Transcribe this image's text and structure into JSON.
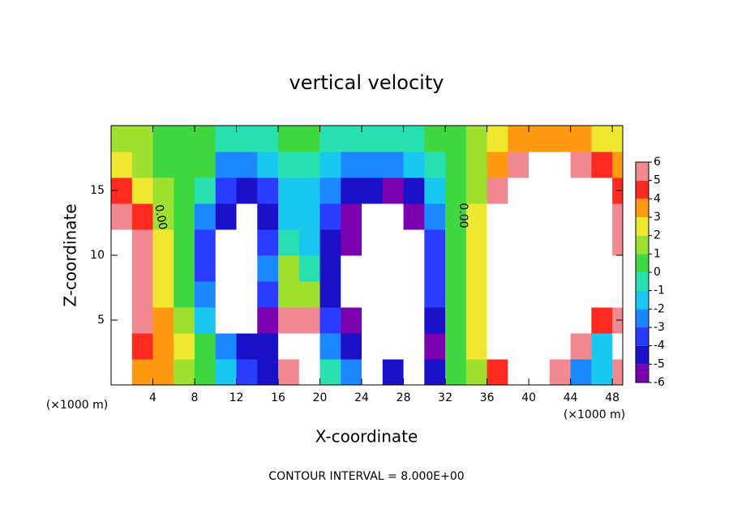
{
  "chart_data": {
    "type": "heatmap",
    "title": "vertical velocity",
    "x_label": "X-coordinate",
    "y_label": "Z-coordinate",
    "x_unit_labels": [
      "(×1000 m)",
      "(×1000 m)"
    ],
    "footer": "CONTOUR INTERVAL = 8.000E+00",
    "contour_labels": [
      "0.00",
      "0.00"
    ],
    "xlim": [
      0,
      49
    ],
    "ylim": [
      0,
      20
    ],
    "xticks": [
      4,
      8,
      12,
      16,
      20,
      24,
      28,
      32,
      36,
      40,
      44,
      48
    ],
    "yticks": [
      5,
      10,
      15
    ],
    "x": [
      1,
      3,
      5,
      7,
      9,
      11,
      13,
      15,
      17,
      19,
      21,
      23,
      25,
      27,
      29,
      31,
      33,
      35,
      37,
      39,
      41,
      43,
      45,
      47,
      49
    ],
    "y": [
      1,
      3,
      5,
      7,
      9,
      11,
      13,
      15,
      17,
      19
    ],
    "z": [
      [
        7,
        3,
        3,
        1,
        0,
        -2,
        -4,
        -5,
        5,
        7,
        -1,
        -3,
        -7,
        -5,
        -7,
        -5,
        0,
        1,
        4,
        6,
        7,
        5,
        -3,
        -2,
        5
      ],
      [
        8,
        4,
        3,
        2,
        0,
        -3,
        -5,
        -5,
        7,
        8,
        -3,
        -5,
        -7,
        -8,
        -8,
        -6,
        0,
        2,
        6,
        8,
        8,
        8,
        5,
        -2,
        6
      ],
      [
        6,
        5,
        3,
        1,
        -2,
        -7,
        -8,
        -6,
        5,
        5,
        -4,
        -6,
        -8,
        -8,
        -8,
        -5,
        0,
        2,
        6,
        8,
        8,
        8,
        7,
        4,
        5
      ],
      [
        6,
        5,
        2,
        0,
        -3,
        -8,
        -8,
        -4,
        1,
        1,
        -5,
        -7,
        -8,
        -8,
        -8,
        -4,
        0,
        2,
        6,
        8,
        8,
        8,
        8,
        7,
        6
      ],
      [
        7,
        5,
        2,
        0,
        -4,
        -8,
        -8,
        -3,
        1,
        -1,
        -5,
        -7,
        -8,
        -8,
        -7,
        -4,
        0,
        2,
        6,
        8,
        8,
        8,
        8,
        8,
        6
      ],
      [
        6,
        5,
        2,
        0,
        -4,
        -7,
        -8,
        -4,
        -1,
        -2,
        -5,
        -6,
        -8,
        -8,
        -7,
        -4,
        0,
        2,
        6,
        8,
        8,
        8,
        8,
        7,
        5
      ],
      [
        5,
        4,
        1,
        0,
        -3,
        -5,
        -7,
        -5,
        -2,
        -2,
        -4,
        -6,
        -7,
        -8,
        -6,
        -3,
        0,
        2,
        6,
        8,
        8,
        8,
        8,
        7,
        5
      ],
      [
        4,
        2,
        1,
        0,
        -1,
        -4,
        -5,
        -4,
        -2,
        -2,
        -3,
        -5,
        -5,
        -6,
        -5,
        -2,
        0,
        1,
        5,
        7,
        7,
        8,
        7,
        6,
        4
      ],
      [
        2,
        1,
        0,
        0,
        0,
        -3,
        -3,
        -2,
        -1,
        -1,
        -2,
        -3,
        -3,
        -3,
        -2,
        -1,
        0,
        1,
        3,
        5,
        6,
        6,
        5,
        4,
        3
      ],
      [
        1,
        1,
        0,
        0,
        0,
        -1,
        -1,
        -1,
        0,
        0,
        -1,
        -1,
        -1,
        -1,
        -1,
        0,
        0,
        1,
        2,
        3,
        3,
        3,
        3,
        2,
        2
      ]
    ],
    "colorbar": {
      "lim": [
        -6,
        6
      ],
      "ticks": [
        6,
        5,
        4,
        3,
        2,
        1,
        0,
        -1,
        -2,
        -3,
        -4,
        -5,
        -6
      ],
      "colors": [
        "#7a00b0",
        "#1a10c8",
        "#2a3cff",
        "#1c88ff",
        "#18c8f0",
        "#28e0b0",
        "#40d840",
        "#a0e030",
        "#f0e830",
        "#ff9a10",
        "#ff2a20",
        "#f08a90"
      ]
    }
  }
}
